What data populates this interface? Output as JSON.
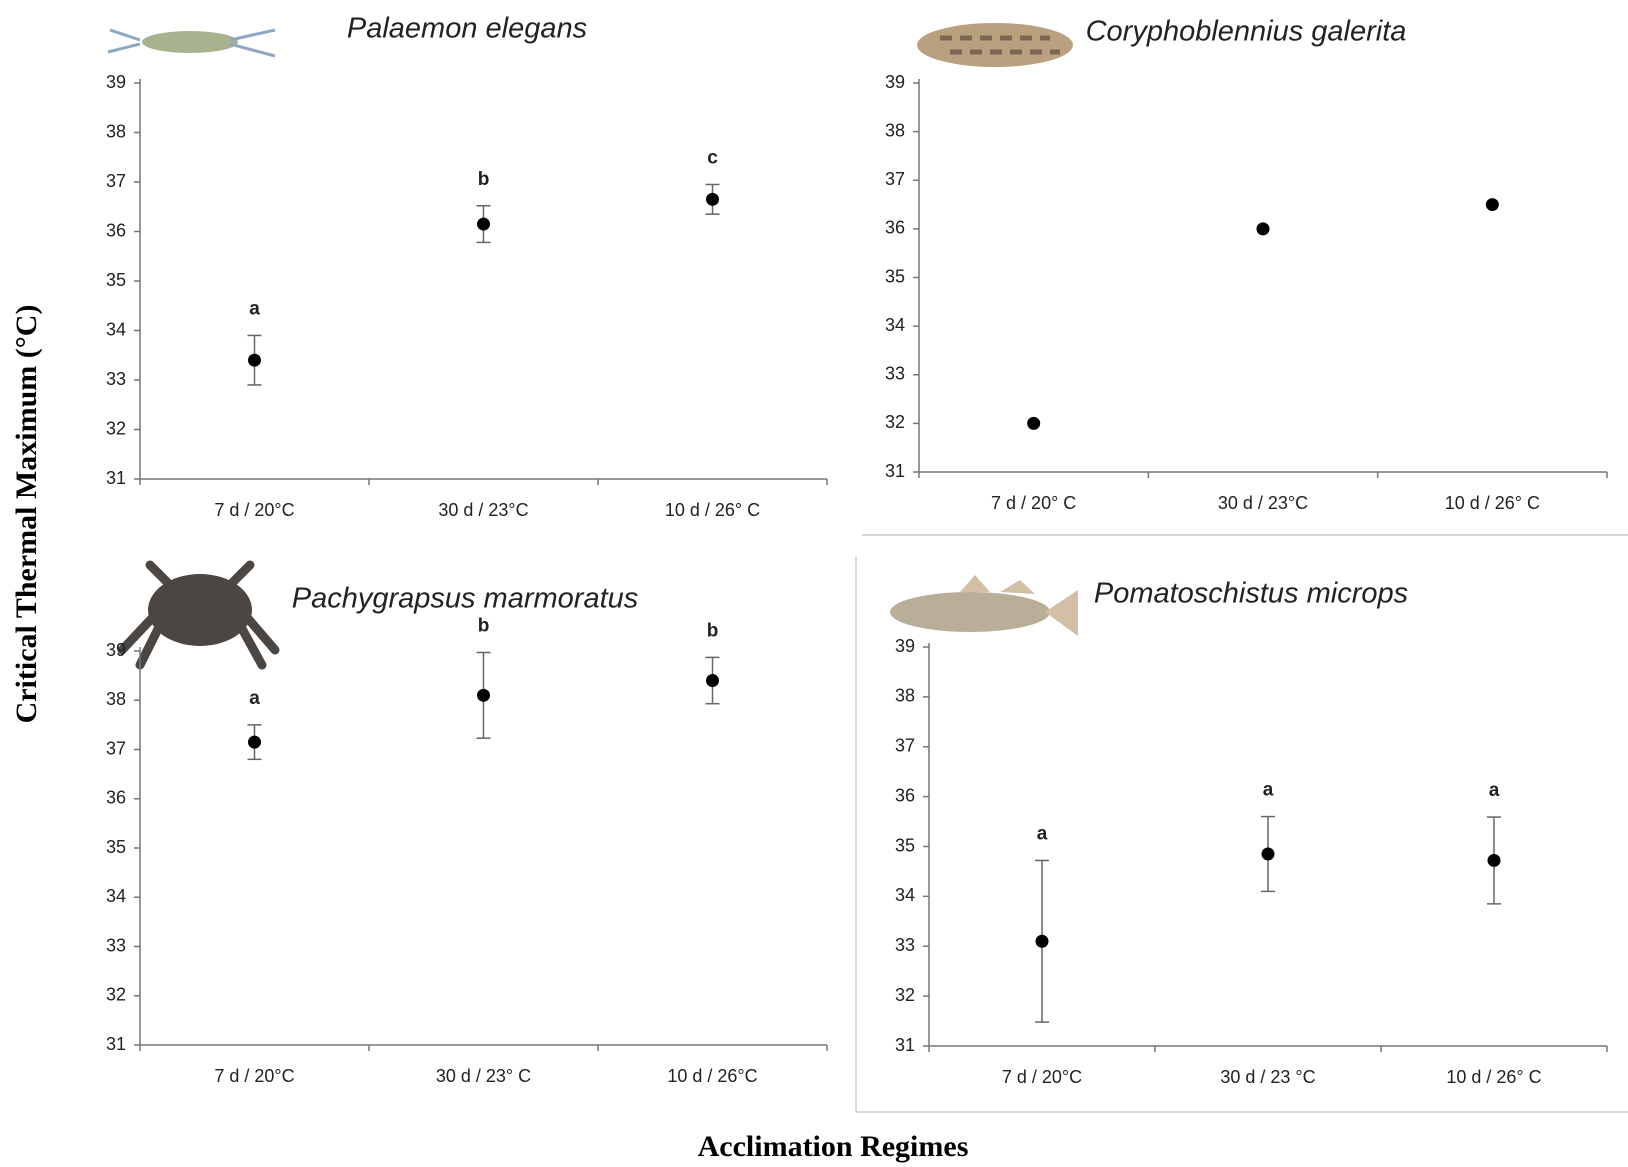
{
  "y_label": "Critical Thermal Maximum (°C)",
  "x_label": "Acclimation Regimes",
  "chart_data": [
    {
      "type": "scatter",
      "title": "Palaemon elegans",
      "categories": [
        "7 d / 20°C",
        "30 d / 23°C",
        "10 d / 26° C"
      ],
      "values": [
        33.4,
        36.15,
        36.65
      ],
      "errors": [
        0.5,
        0.37,
        0.3
      ],
      "annotations": [
        "a",
        "b",
        "c"
      ],
      "color": "#000000",
      "ylim": [
        31,
        39
      ],
      "yticks": [
        31,
        32,
        33,
        34,
        35,
        36,
        37,
        38,
        39
      ]
    },
    {
      "type": "scatter",
      "title": "Coryphoblennius galerita",
      "categories": [
        "7 d / 20° C",
        "30 d / 23°C",
        "10 d / 26° C"
      ],
      "values": [
        32.0,
        36.0,
        36.5
      ],
      "color": "#000000",
      "ylim": [
        31,
        39
      ],
      "yticks": [
        31,
        32,
        33,
        34,
        35,
        36,
        37,
        38,
        39
      ]
    },
    {
      "type": "scatter",
      "title": "Pachygrapsus marmoratus",
      "categories": [
        "7 d / 20°C",
        "30 d / 23° C",
        "10 d / 26°C"
      ],
      "values": [
        37.15,
        38.1,
        38.4
      ],
      "errors": [
        0.35,
        0.87,
        0.47
      ],
      "annotations": [
        "a",
        "b",
        "b"
      ],
      "color": "#000000",
      "ylim": [
        31,
        39
      ],
      "yticks": [
        31,
        32,
        33,
        34,
        35,
        36,
        37,
        38,
        39
      ]
    },
    {
      "type": "scatter",
      "title": "Pomatoschistus microps",
      "categories": [
        "7 d / 20°C",
        "30 d / 23 °C",
        "10 d / 26° C"
      ],
      "values": [
        33.1,
        34.85,
        34.72
      ],
      "errors": [
        1.62,
        0.75,
        0.87
      ],
      "annotations": [
        "a",
        "a",
        "a"
      ],
      "color": "#000000",
      "ylim": [
        31,
        39
      ],
      "yticks": [
        31,
        32,
        33,
        34,
        35,
        36,
        37,
        38,
        39
      ]
    }
  ]
}
